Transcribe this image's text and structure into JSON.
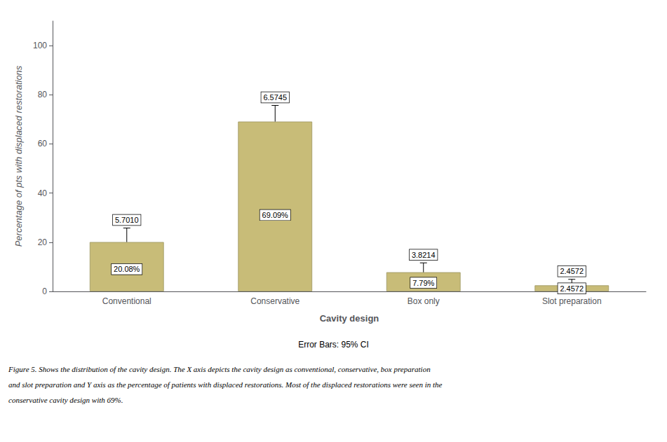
{
  "chart_data": {
    "type": "bar",
    "categories": [
      "Conventional",
      "Conservative",
      "Box only",
      "Slot preparation"
    ],
    "values": [
      20.08,
      69.09,
      7.79,
      2.4572
    ],
    "value_labels": [
      "20.08%",
      "69.09%",
      "7.79%",
      "2.4572"
    ],
    "data_labels": true,
    "errors": [
      5.701,
      6.5745,
      3.8214,
      2.4572
    ],
    "error_labels": [
      "5.7010",
      "6.5745",
      "3.8214",
      "2.4572"
    ],
    "color": "#C8BC78",
    "ylabel": "Percentage of pts with displaced restorations",
    "xlabel": "Cavity design",
    "ylim": [
      0,
      110
    ],
    "yticks": [
      0,
      20,
      40,
      60,
      80,
      100
    ],
    "grid": false,
    "error_caption": "Error Bars: 95% CI",
    "caption_lines": [
      "Figure 5. Shows the distribution of the cavity design. The X axis depicts the cavity design as conventional, conservative, box preparation",
      "and slot preparation and Y axis as the percentage of patients with displaced restorations. Most of the displaced restorations were seen in the",
      "conservative cavity design with 69%."
    ]
  }
}
